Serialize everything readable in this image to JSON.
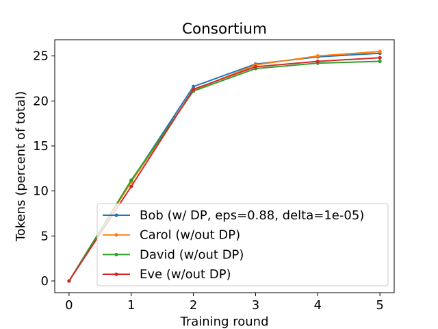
{
  "chart_data": {
    "type": "line",
    "title": "Consortium",
    "xlabel": "Training round",
    "ylabel": "Tokens (percent of total)",
    "x": [
      0,
      1,
      2,
      3,
      4,
      5
    ],
    "xlim": [
      -0.23,
      5.23
    ],
    "ylim": [
      -1.3,
      26.8
    ],
    "xticks": [
      0,
      1,
      2,
      3,
      4,
      5
    ],
    "yticks": [
      0,
      5,
      10,
      15,
      20,
      25
    ],
    "xtick_labels": [
      "0",
      "1",
      "2",
      "3",
      "4",
      "5"
    ],
    "ytick_labels": [
      "0",
      "5",
      "10",
      "15",
      "20",
      "25"
    ],
    "grid": false,
    "legend_position": "lower-right",
    "series": [
      {
        "name": "Bob (w/ DP, eps=0.88, delta=1e-05)",
        "color": "#1f77b4",
        "values": [
          0,
          11.1,
          21.6,
          24.1,
          24.9,
          25.3
        ]
      },
      {
        "name": "Carol (w/out DP)",
        "color": "#ff7f0e",
        "values": [
          0,
          11.0,
          21.2,
          24.0,
          25.0,
          25.5
        ]
      },
      {
        "name": "David (w/out DP)",
        "color": "#2ca02c",
        "values": [
          0,
          11.2,
          21.1,
          23.6,
          24.2,
          24.4
        ]
      },
      {
        "name": "Eve (w/out DP)",
        "color": "#d62728",
        "values": [
          0,
          10.5,
          21.3,
          23.8,
          24.4,
          24.8
        ]
      }
    ]
  }
}
